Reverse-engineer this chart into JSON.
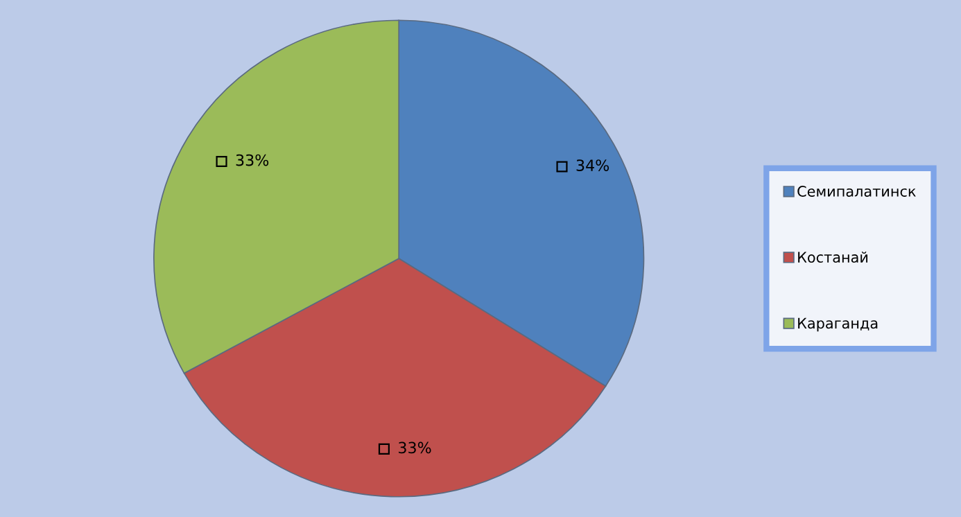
{
  "chart_data": {
    "type": "pie",
    "categories": [
      "Семипалатинск",
      "Костанай",
      "Караганда"
    ],
    "values": [
      34,
      33,
      33
    ],
    "colors": [
      "#4f81bd",
      "#c0504d",
      "#9bbb59"
    ],
    "value_labels": [
      "34%",
      "33%",
      "33%"
    ],
    "legend": "right"
  }
}
